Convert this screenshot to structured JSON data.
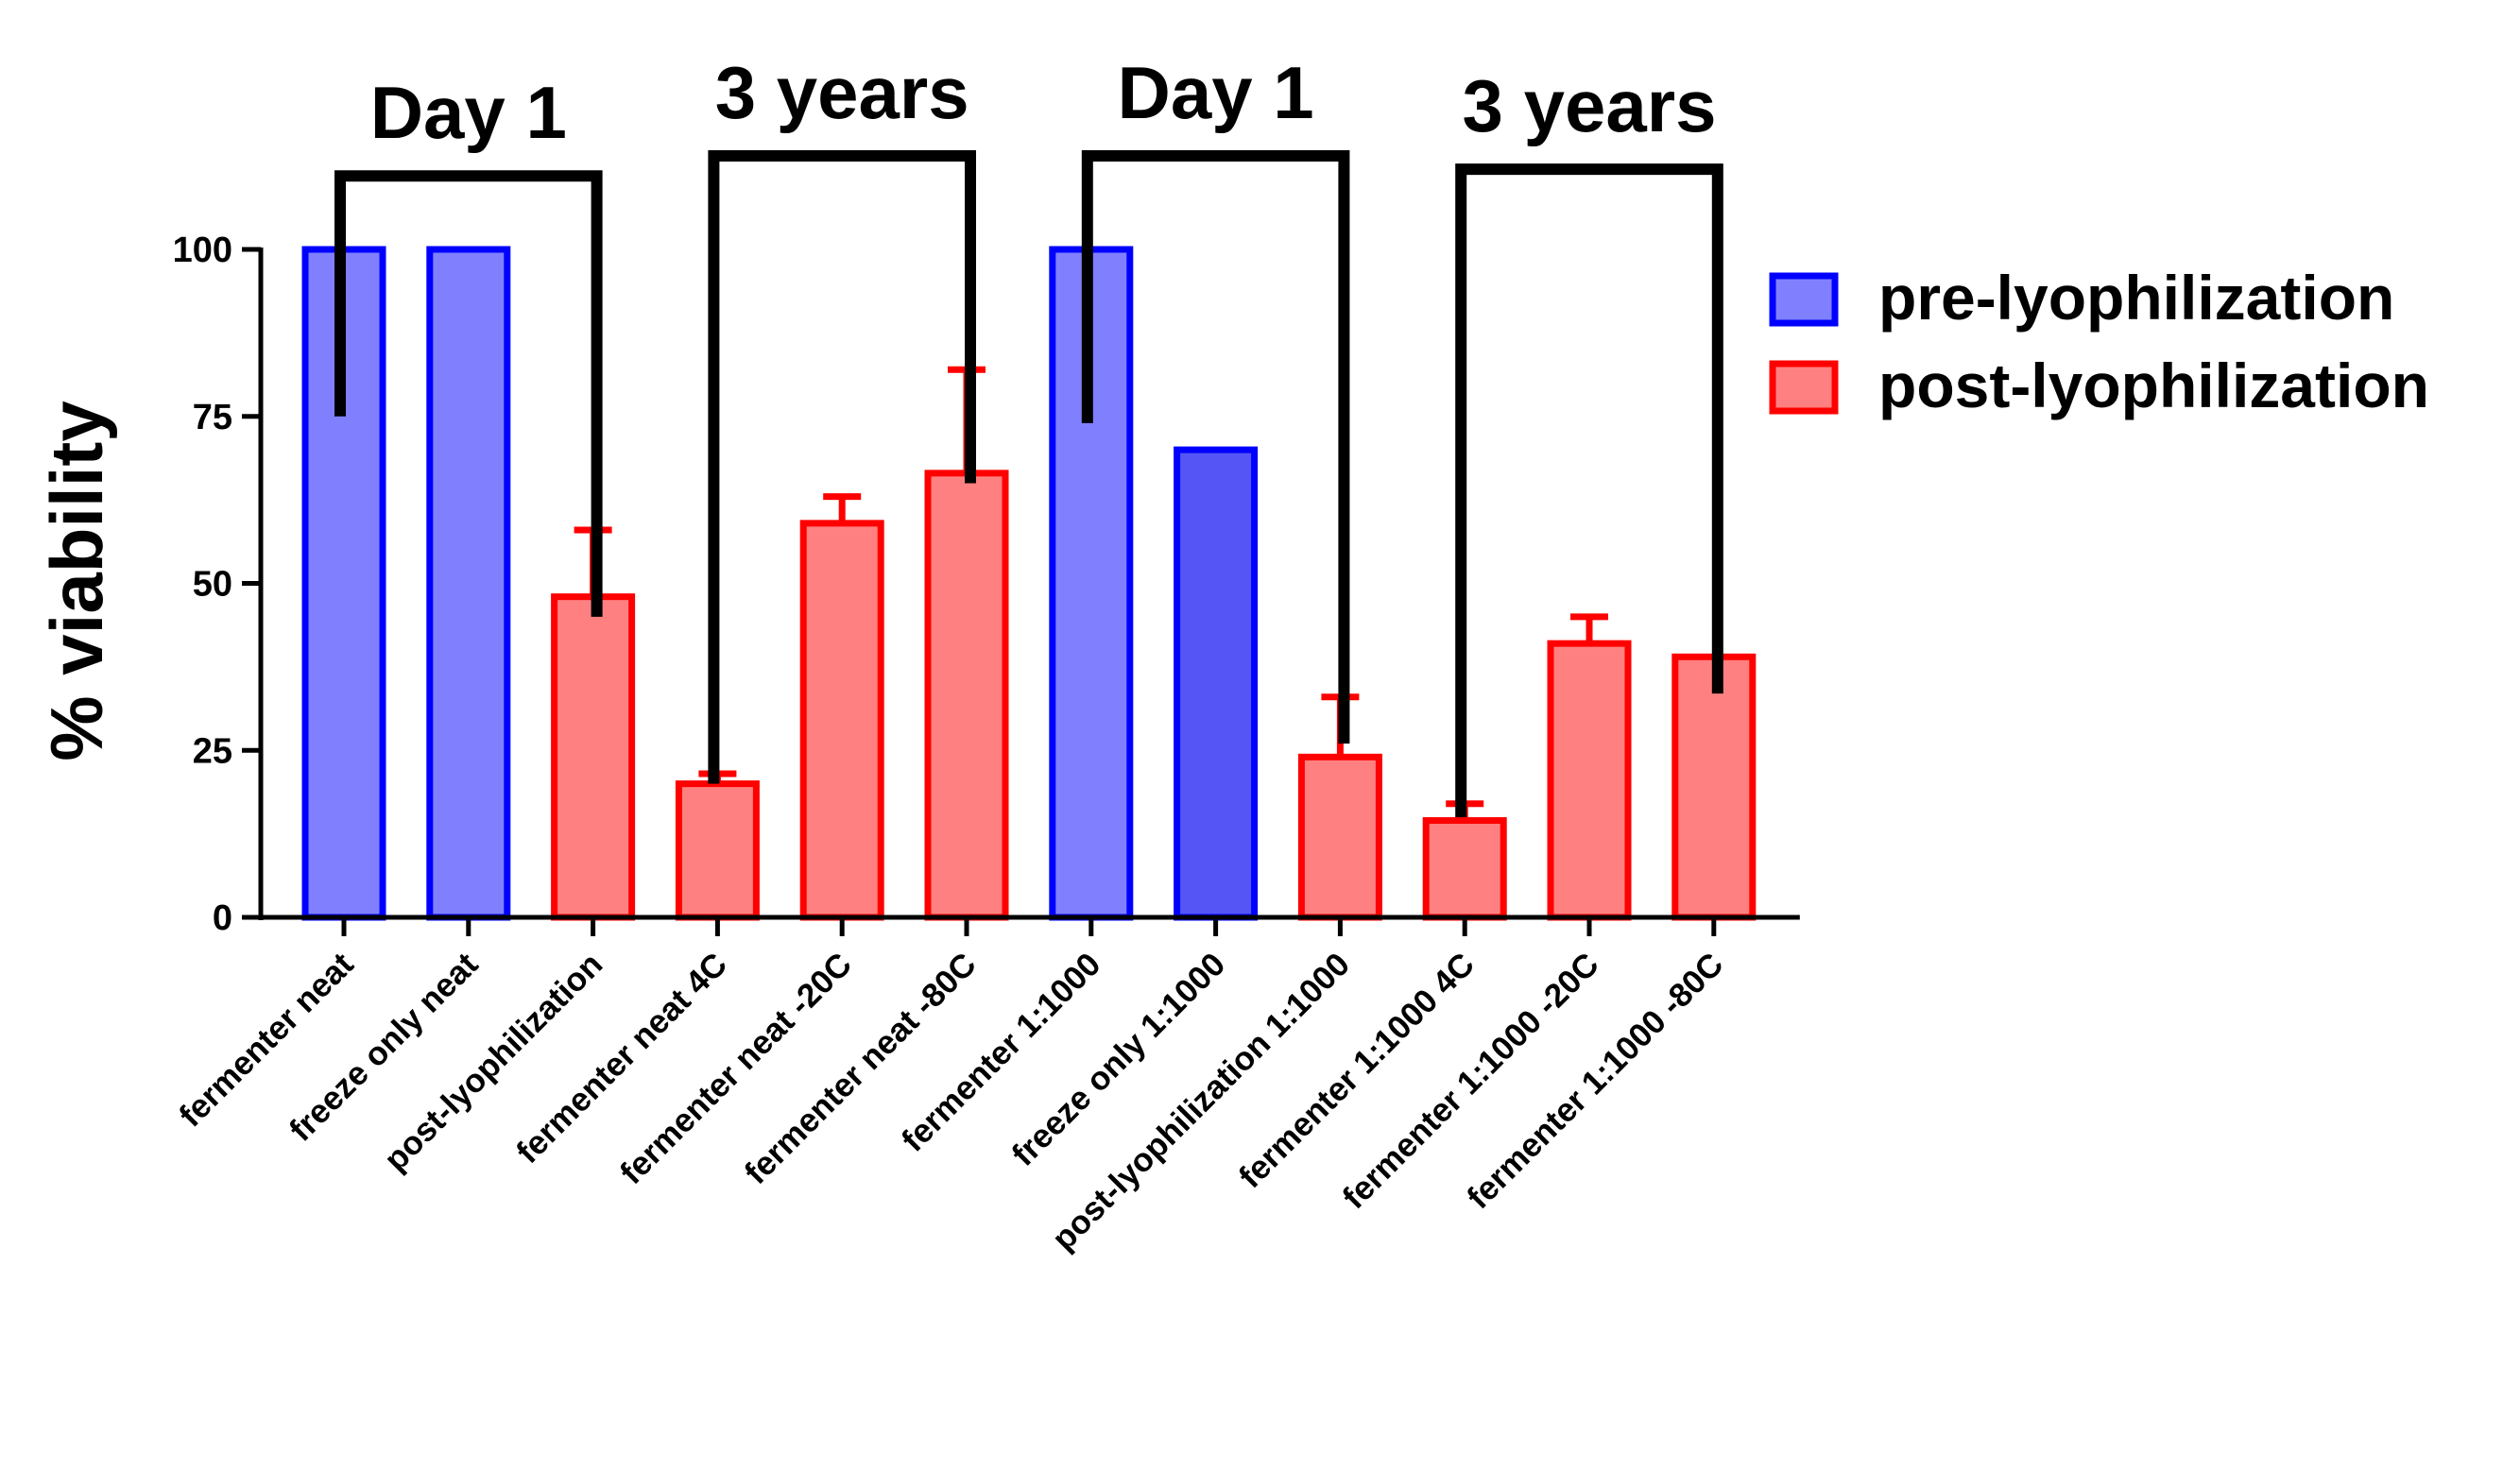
{
  "chart_data": {
    "type": "bar",
    "title": "",
    "xlabel": "",
    "ylabel": "% viability",
    "ylim": [
      0,
      100
    ],
    "yticks": [
      0,
      25,
      50,
      75,
      100
    ],
    "colors": {
      "pre": "#8080ff",
      "pre_dark": "#5555f5",
      "pre_edge": "#0000ff",
      "post": "#ff8080",
      "post_edge": "#ff0000"
    },
    "legend": [
      {
        "name": "pre-lyophilization",
        "group": "pre"
      },
      {
        "name": "post-lyophilization",
        "group": "post"
      }
    ],
    "categories": [
      "fermenter neat",
      "freeze only neat",
      "post-lyophilization",
      "fermenter neat 4C",
      "fermenter neat  -20C",
      "fermenter neat  -80C",
      "fermenter 1:1000",
      "freeze only 1:1000",
      "post-lyophilization 1:1000",
      "fermenter 1:1000 4C",
      "fermenter 1:1000 -20C",
      "fermenter 1:1000  -80C"
    ],
    "values": [
      100,
      100,
      48,
      20,
      59,
      66.5,
      100,
      70,
      24,
      14.5,
      41,
      39
    ],
    "errors": [
      0,
      0,
      10,
      1.5,
      4,
      15.5,
      0,
      0,
      9,
      2.5,
      4,
      0
    ],
    "groups": [
      "pre",
      "pre",
      "post",
      "post",
      "post",
      "post",
      "pre",
      "pre_dark",
      "post",
      "post",
      "post",
      "post"
    ],
    "brackets": [
      {
        "label": "Day 1",
        "from": 0,
        "to": 2,
        "left_bottom": 75,
        "right_bottom": 45,
        "top": 111
      },
      {
        "label": "3 years",
        "from": 3,
        "to": 5,
        "left_bottom": 20,
        "right_bottom": 65,
        "top": 114
      },
      {
        "label": "Day 1",
        "from": 6,
        "to": 8,
        "left_bottom": 74,
        "right_bottom": 26,
        "top": 114
      },
      {
        "label": "3 years",
        "from": 9,
        "to": 11,
        "left_bottom": 15,
        "right_bottom": 33.5,
        "top": 112
      }
    ]
  }
}
